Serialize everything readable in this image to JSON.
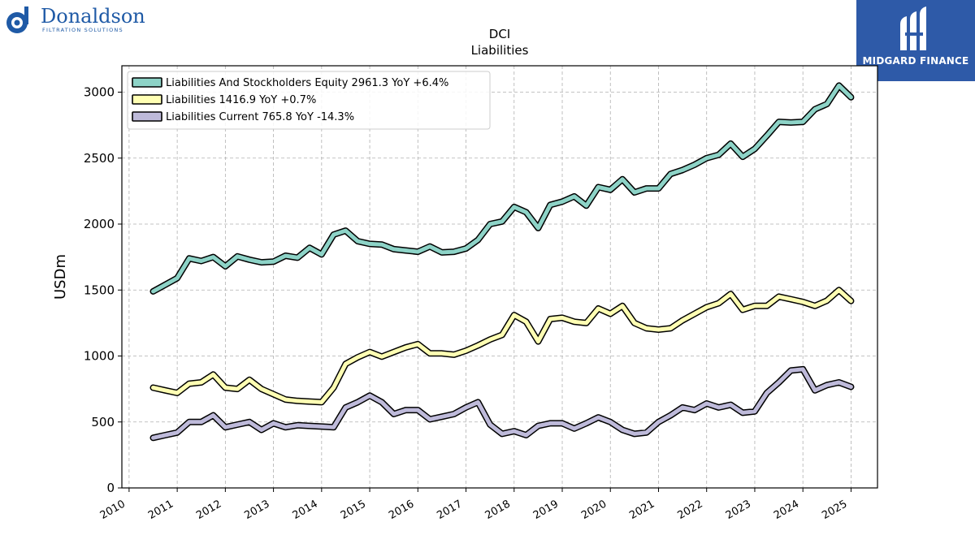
{
  "brands": {
    "left": {
      "name": "Donaldson",
      "tagline": "FILTRATION SOLUTIONS",
      "color": "#1f5aa6"
    },
    "right": {
      "name": "MIDGARD FINANCE",
      "color": "#2e5aa8"
    }
  },
  "chart_data": {
    "type": "line",
    "title": "DCI",
    "subtitle": "Liabilities",
    "xlabel": "",
    "ylabel": "USDm",
    "xlim": [
      "2010",
      "2025"
    ],
    "ylim": [
      0,
      3200
    ],
    "yticks": [
      0,
      500,
      1000,
      1500,
      2000,
      2500,
      3000
    ],
    "xticks": [
      "2010",
      "2011",
      "2012",
      "2013",
      "2014",
      "2015",
      "2016",
      "2017",
      "2018",
      "2019",
      "2020",
      "2021",
      "2022",
      "2023",
      "2024",
      "2025"
    ],
    "grid": true,
    "legend_position": "top-left",
    "x": [
      "2010-07",
      "2010-10",
      "2011-01",
      "2011-04",
      "2011-07",
      "2011-10",
      "2012-01",
      "2012-04",
      "2012-07",
      "2012-10",
      "2013-01",
      "2013-04",
      "2013-07",
      "2013-10",
      "2014-01",
      "2014-04",
      "2014-07",
      "2014-10",
      "2015-01",
      "2015-04",
      "2015-07",
      "2015-10",
      "2016-01",
      "2016-04",
      "2016-07",
      "2016-10",
      "2017-01",
      "2017-04",
      "2017-07",
      "2017-10",
      "2018-01",
      "2018-04",
      "2018-07",
      "2018-10",
      "2019-01",
      "2019-04",
      "2019-07",
      "2019-10",
      "2020-01",
      "2020-04",
      "2020-07",
      "2020-10",
      "2021-01",
      "2021-04",
      "2021-07",
      "2021-10",
      "2022-01",
      "2022-04",
      "2022-07",
      "2022-10",
      "2023-01",
      "2023-04",
      "2023-07",
      "2023-10",
      "2024-01",
      "2024-04",
      "2024-07",
      "2024-10",
      "2025-01"
    ],
    "series": [
      {
        "name": "Liabilities And Stockholders Equity",
        "legend_label": "Liabilities And Stockholders Equity  2961.3 YoY +6.4%",
        "color": "#8dd3c7",
        "values": [
          1490,
          1540,
          1590,
          1740,
          1720,
          1750,
          1680,
          1755,
          1730,
          1710,
          1715,
          1760,
          1745,
          1820,
          1770,
          1920,
          1950,
          1870,
          1850,
          1845,
          1810,
          1800,
          1790,
          1830,
          1785,
          1790,
          1815,
          1880,
          2000,
          2020,
          2130,
          2090,
          1970,
          2145,
          2170,
          2210,
          2140,
          2280,
          2260,
          2340,
          2240,
          2270,
          2270,
          2380,
          2410,
          2450,
          2500,
          2525,
          2610,
          2510,
          2570,
          2670,
          2775,
          2770,
          2775,
          2870,
          2910,
          3050,
          2961
        ]
      },
      {
        "name": "Liabilities",
        "legend_label": "Liabilities  1416.9 YoY +0.7%",
        "color": "#ffffb3",
        "values": [
          760,
          740,
          720,
          790,
          800,
          860,
          760,
          750,
          820,
          750,
          710,
          670,
          660,
          655,
          650,
          760,
          940,
          990,
          1030,
          995,
          1030,
          1065,
          1090,
          1020,
          1020,
          1010,
          1040,
          1080,
          1125,
          1160,
          1310,
          1260,
          1110,
          1280,
          1290,
          1260,
          1250,
          1360,
          1320,
          1380,
          1250,
          1210,
          1200,
          1210,
          1270,
          1320,
          1370,
          1400,
          1470,
          1350,
          1380,
          1380,
          1450,
          1430,
          1410,
          1380,
          1420,
          1500,
          1417
        ]
      },
      {
        "name": "Liabilities Current",
        "legend_label": "Liabilities Current  765.8 YoY -14.3%",
        "color": "#bebada",
        "values": [
          380,
          400,
          420,
          500,
          500,
          550,
          460,
          480,
          500,
          440,
          490,
          460,
          475,
          470,
          465,
          460,
          610,
          650,
          700,
          650,
          560,
          590,
          590,
          520,
          540,
          560,
          610,
          650,
          480,
          410,
          430,
          400,
          470,
          490,
          490,
          450,
          490,
          535,
          500,
          440,
          410,
          420,
          500,
          550,
          610,
          590,
          640,
          610,
          630,
          570,
          580,
          720,
          800,
          890,
          900,
          740,
          780,
          800,
          766
        ]
      }
    ]
  }
}
